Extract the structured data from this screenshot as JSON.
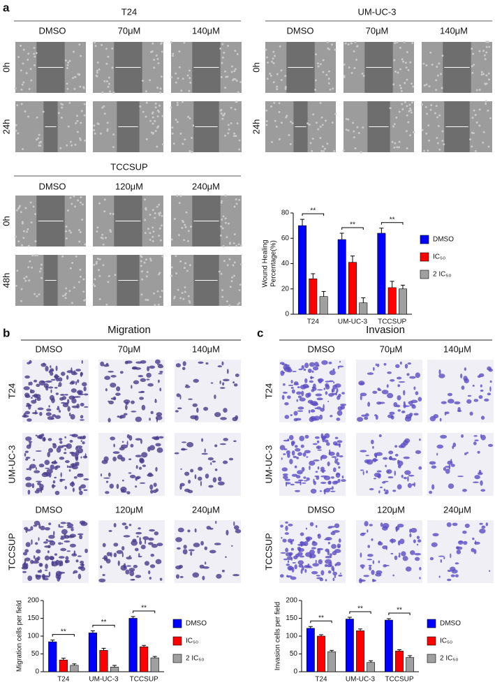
{
  "panels": {
    "a": {
      "label": "a",
      "groups": [
        {
          "title": "T24",
          "columns": [
            "DMSO",
            "70μM",
            "140μM"
          ],
          "rows": [
            "0h",
            "24h"
          ]
        },
        {
          "title": "UM-UC-3",
          "columns": [
            "DMSO",
            "70μM",
            "140μM"
          ],
          "rows": [
            "0h",
            "24h"
          ]
        },
        {
          "title": "TCCSUP",
          "columns": [
            "DMSO",
            "120μM",
            "240μM"
          ],
          "rows": [
            "0h",
            "48h"
          ]
        }
      ]
    },
    "b": {
      "label": "b",
      "title": "Migration",
      "columns": [
        "DMSO",
        "70μM",
        "140μM"
      ],
      "columns_tccsup": [
        "DMSO",
        "120μM",
        "240μM"
      ],
      "rows": [
        "T24",
        "UM-UC-3",
        "TCCSUP"
      ]
    },
    "c": {
      "label": "c",
      "title": "Invasion",
      "columns": [
        "DMSO",
        "70μM",
        "140μM"
      ],
      "columns_tccsup": [
        "DMSO",
        "120μM",
        "240μM"
      ],
      "rows": [
        "T24",
        "UM-UC-3",
        "TCCSUP"
      ]
    }
  },
  "chart_data": [
    {
      "type": "bar",
      "y_label": [
        "Wound Healing",
        "Percentage(%)"
      ],
      "categories": [
        "T24",
        "UM-UC-3",
        "TCCSUP"
      ],
      "series": [
        {
          "name": "DMSO",
          "color": "#0000ff",
          "values": [
            70,
            59,
            64
          ],
          "errors": [
            5,
            5,
            4
          ]
        },
        {
          "name": "IC₅₀",
          "color": "#ff0000",
          "values": [
            28,
            41,
            21
          ],
          "errors": [
            4,
            5,
            5
          ]
        },
        {
          "name": "2 IC₅₀",
          "color": "#a0a0a0",
          "values": [
            14,
            9,
            20
          ],
          "errors": [
            4,
            4,
            3
          ]
        }
      ],
      "annotations": [
        "**",
        "**",
        "**"
      ],
      "ylim": [
        0,
        80
      ],
      "yticks": [
        0,
        20,
        40,
        60,
        80
      ]
    },
    {
      "type": "bar",
      "y_label": [
        "Migration cells per field"
      ],
      "categories": [
        "T24",
        "UM-UC-3",
        "TCCSUP"
      ],
      "series": [
        {
          "name": "DMSO",
          "color": "#0000ff",
          "values": [
            84,
            109,
            150
          ],
          "errors": [
            5,
            6,
            5
          ]
        },
        {
          "name": "IC₅₀",
          "color": "#ff0000",
          "values": [
            33,
            60,
            70
          ],
          "errors": [
            5,
            6,
            4
          ]
        },
        {
          "name": "2 IC₅₀",
          "color": "#a0a0a0",
          "values": [
            18,
            13,
            39
          ],
          "errors": [
            4,
            5,
            4
          ]
        }
      ],
      "annotations": [
        "**",
        "**",
        "**"
      ],
      "ylim": [
        0,
        200
      ],
      "yticks": [
        0,
        50,
        100,
        150,
        200
      ]
    },
    {
      "type": "bar",
      "y_label": [
        "Invasion cells per field"
      ],
      "categories": [
        "T24",
        "UM-UC-3",
        "TCCSUP"
      ],
      "series": [
        {
          "name": "DMSO",
          "color": "#0000ff",
          "values": [
            122,
            148,
            145
          ],
          "errors": [
            5,
            5,
            4
          ]
        },
        {
          "name": "IC₅₀",
          "color": "#ff0000",
          "values": [
            100,
            115,
            58
          ],
          "errors": [
            4,
            5,
            4
          ]
        },
        {
          "name": "2 IC₅₀",
          "color": "#a0a0a0",
          "values": [
            56,
            26,
            40
          ],
          "errors": [
            4,
            5,
            5
          ]
        }
      ],
      "annotations": [
        "**",
        "**",
        "**"
      ],
      "ylim": [
        0,
        200
      ],
      "yticks": [
        0,
        50,
        100,
        150,
        200
      ]
    }
  ]
}
